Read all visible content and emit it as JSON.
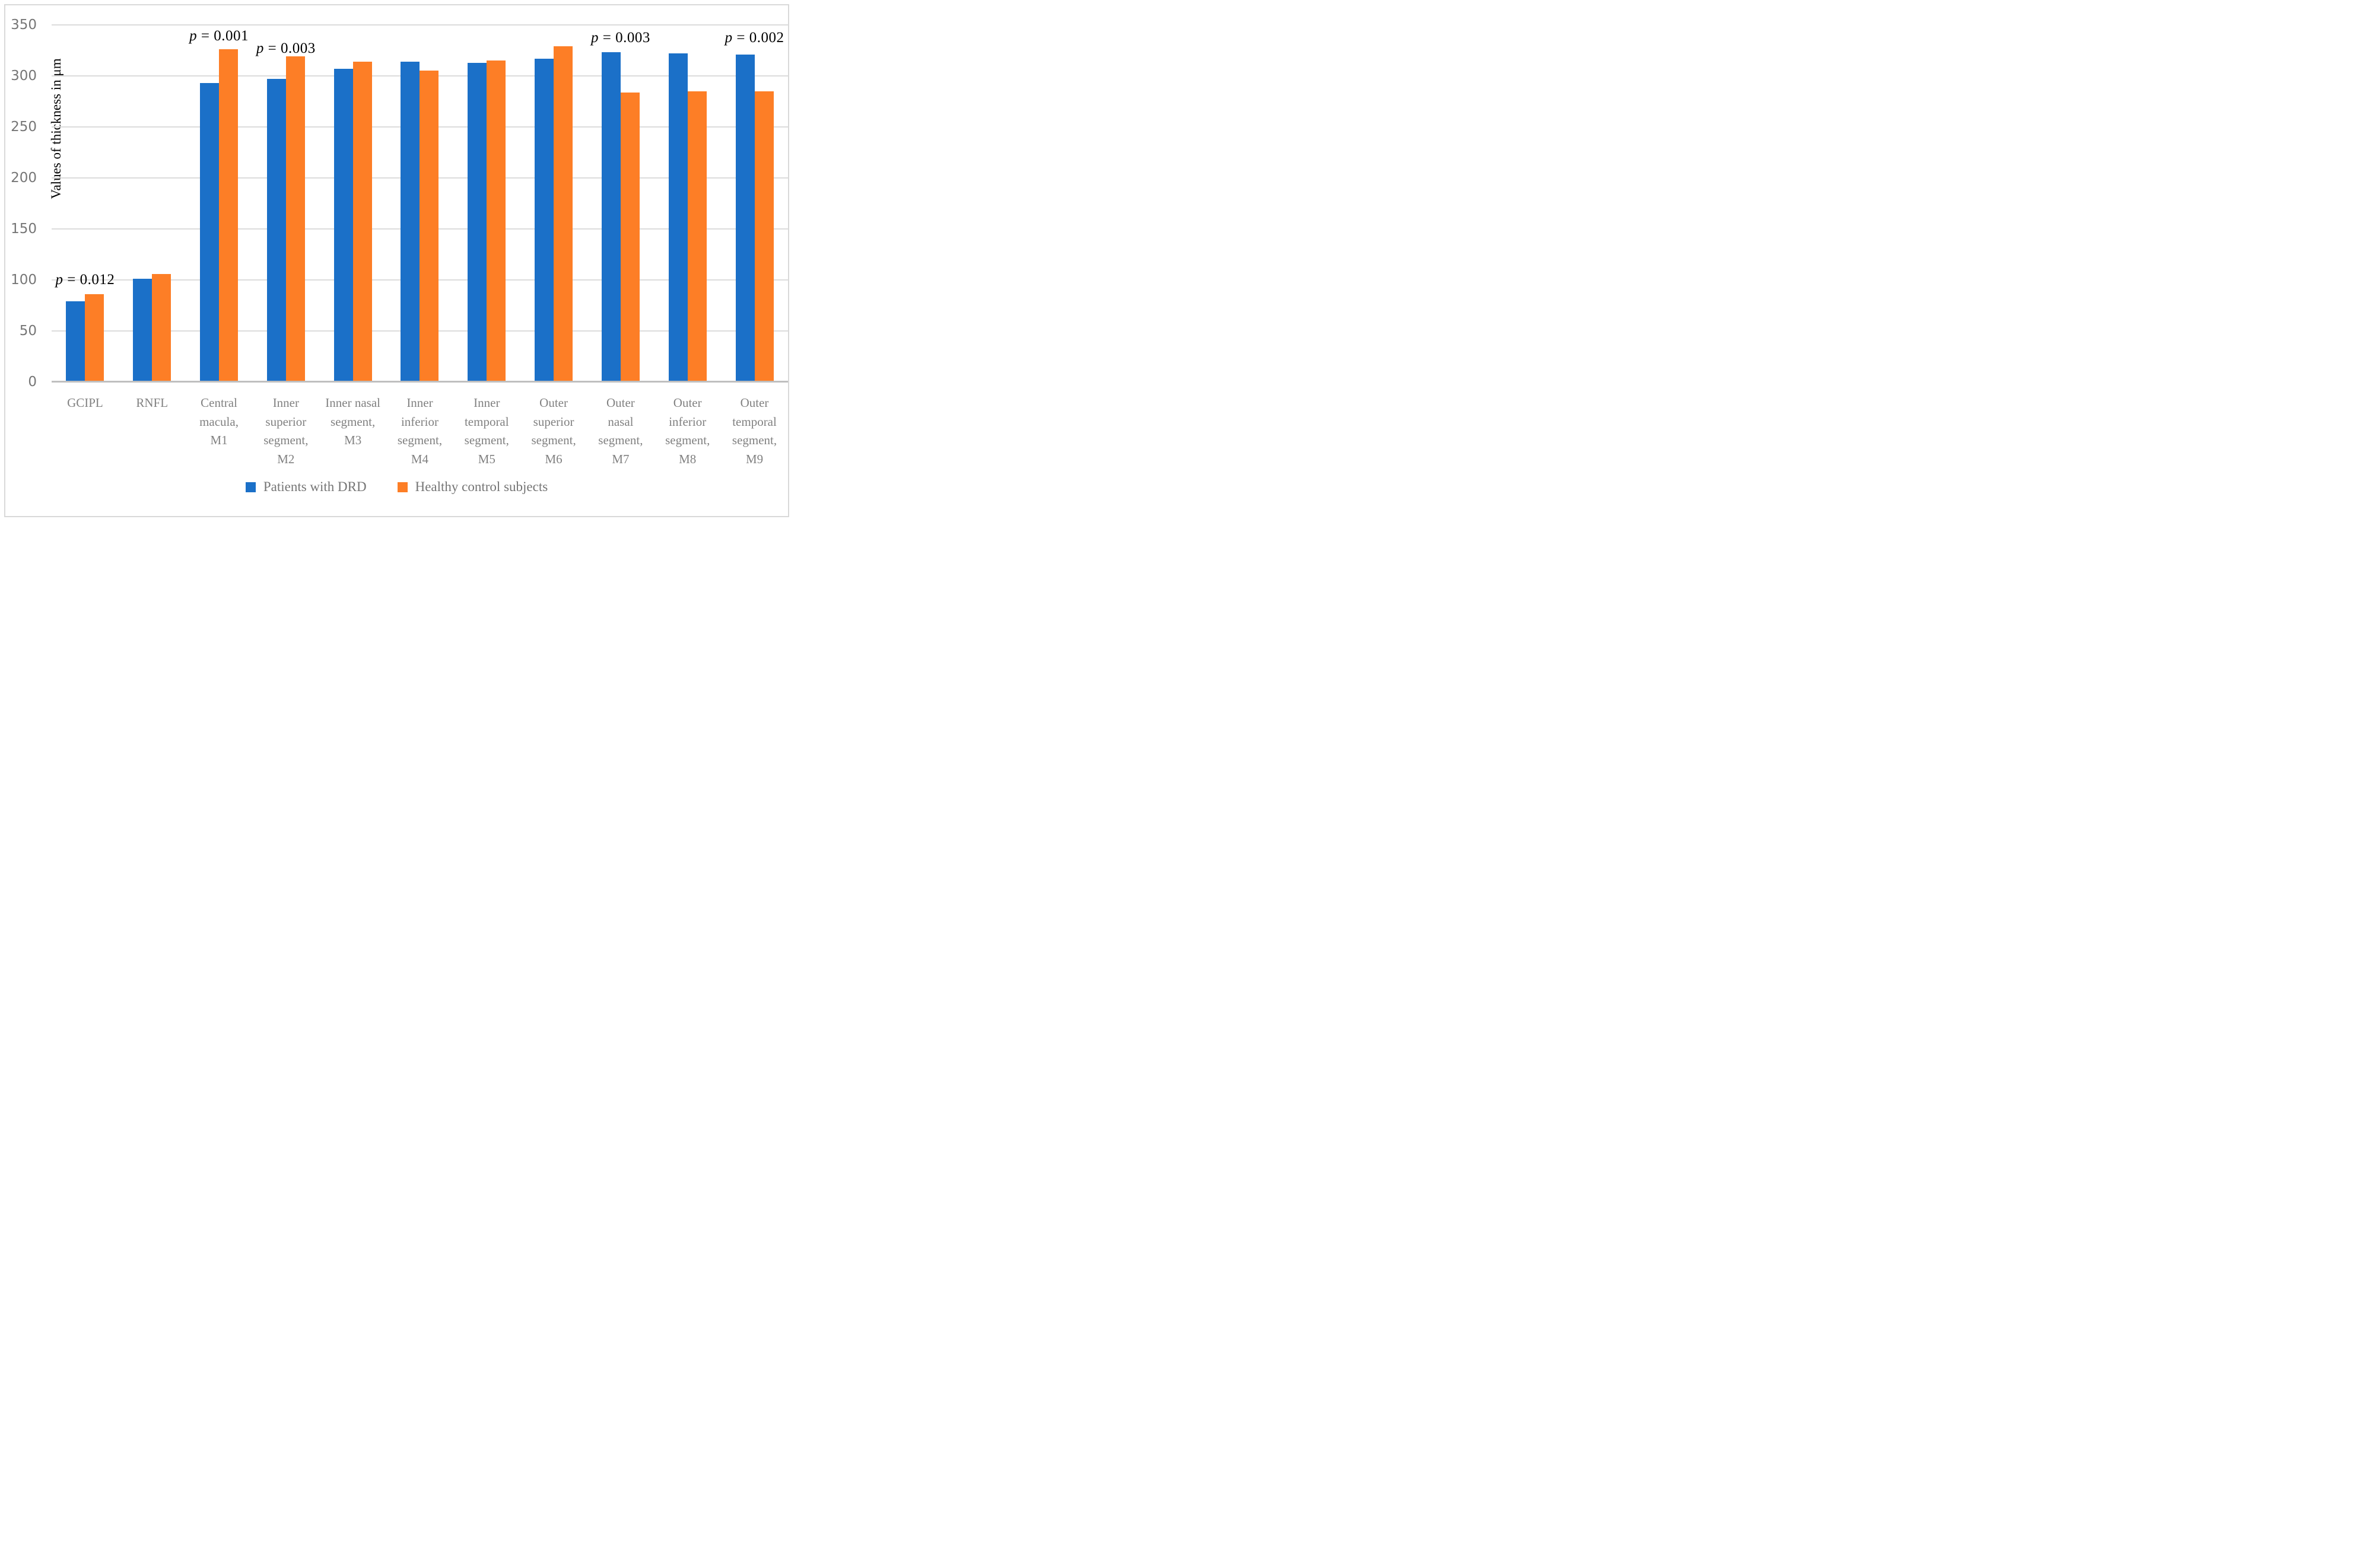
{
  "figure": {
    "y_axis_title": "Values of thickness in μm"
  },
  "chart_data": {
    "type": "bar",
    "title": "",
    "xlabel": "",
    "ylabel": "Values of thickness in μm",
    "ylim": [
      0,
      350
    ],
    "y_ticks": [
      0,
      50,
      100,
      150,
      200,
      250,
      300,
      350
    ],
    "grid": true,
    "legend_position": "bottom",
    "categories": [
      "GCIPL",
      "RNFL",
      "Central macula, M1",
      "Inner superior segment, M2",
      "Inner nasal segment, M3",
      "Inner inferior segment, M4",
      "Inner temporal segment, M5",
      "Outer superior segment, M6",
      "Outer nasal segment, M7",
      "Outer inferior segment, M8",
      "Outer temporal segment, M9"
    ],
    "category_label_lines": [
      [
        "GCIPL"
      ],
      [
        "RNFL"
      ],
      [
        "Central",
        "macula,",
        "M1"
      ],
      [
        "Inner",
        "superior",
        "segment,",
        "M2"
      ],
      [
        "Inner nasal",
        "segment,",
        "M3"
      ],
      [
        "Inner",
        "inferior",
        "segment,",
        "M4"
      ],
      [
        "Inner",
        "temporal",
        "segment,",
        "M5"
      ],
      [
        "Outer",
        "superior",
        "segment,",
        "M6"
      ],
      [
        "Outer",
        "nasal",
        "segment,",
        "M7"
      ],
      [
        "Outer",
        "inferior",
        "segment,",
        "M8"
      ],
      [
        "Outer",
        "temporal",
        "segment,",
        "M9"
      ]
    ],
    "series": [
      {
        "name": "Patients with DRD",
        "color": "#1B70C8",
        "values": [
          79,
          101,
          293,
          297,
          307,
          314,
          313,
          317,
          323,
          322,
          321
        ]
      },
      {
        "name": "Healthy control subjects",
        "color": "#FD7E26",
        "values": [
          86,
          106,
          326,
          319,
          314,
          305,
          315,
          329,
          284,
          285,
          285
        ]
      }
    ],
    "annotations": [
      {
        "text": "p = 0.012",
        "category_index": 0,
        "y_value": 100
      },
      {
        "text": "p = 0.001",
        "category_index": 2,
        "y_value": 339
      },
      {
        "text": "p = 0.003",
        "category_index": 3,
        "y_value": 327
      },
      {
        "text": "p = 0.003",
        "category_index": 8,
        "y_value": 337
      },
      {
        "text": "p = 0.002",
        "category_index": 10,
        "y_value": 337
      }
    ]
  }
}
